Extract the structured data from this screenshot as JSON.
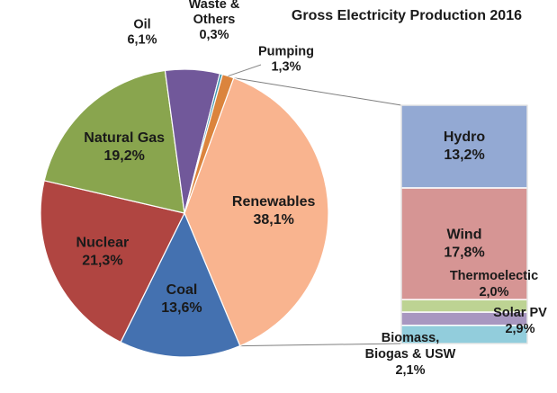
{
  "chart_data": {
    "type": "pie",
    "title": "Gross Electricity Production 2016",
    "slices": [
      {
        "name": "Renewables",
        "label": "38,1%",
        "value": 38.1,
        "color": "#f9b48f"
      },
      {
        "name": "Coal",
        "label": "13,6%",
        "value": 13.6,
        "color": "#4471b0"
      },
      {
        "name": "Nuclear",
        "label": "21,3%",
        "value": 21.3,
        "color": "#b04541"
      },
      {
        "name": "Natural Gas",
        "label": "19,2%",
        "value": 19.2,
        "color": "#89a54e"
      },
      {
        "name": "Oil",
        "label": "6,1%",
        "value": 6.1,
        "color": "#71589a"
      },
      {
        "name": "Waste & Others",
        "label": "0,3%",
        "value": 0.3,
        "color": "#3d96ae"
      },
      {
        "name": "Pumping",
        "label": "1,3%",
        "value": 1.3,
        "color": "#db843d"
      }
    ],
    "breakdown": {
      "of": "Renewables",
      "type": "stacked-bar",
      "segments": [
        {
          "name": "Hydro",
          "label": "13,2%",
          "value": 13.2,
          "color": "#93a9d3"
        },
        {
          "name": "Wind",
          "label": "17,8%",
          "value": 17.8,
          "color": "#d69594"
        },
        {
          "name": "Thermoelectic",
          "label": "2,0%",
          "value": 2.0,
          "color": "#bdd393"
        },
        {
          "name": "Biomass, Biogas & USW",
          "label": "2,1%",
          "value": 2.1,
          "color": "#a897c0"
        },
        {
          "name": "Solar PV",
          "label": "2,9%",
          "value": 2.9,
          "color": "#92cddc"
        }
      ]
    }
  }
}
